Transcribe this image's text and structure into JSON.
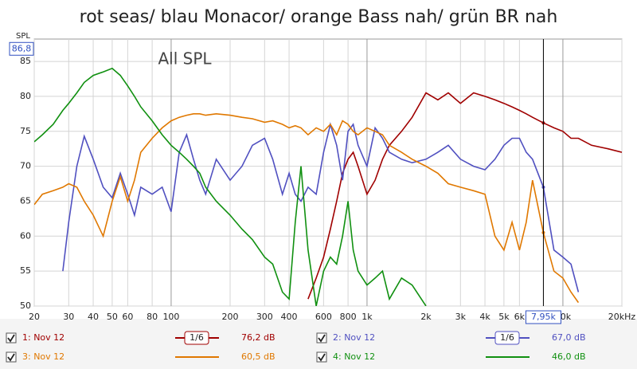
{
  "chart_data": {
    "type": "line",
    "title": "rot seas/ blau Monacor/ orange Bass nah/ grün BR nah",
    "annotation": "All SPL",
    "y_label": "SPL",
    "log_x": true,
    "grid": true,
    "xlim": [
      20,
      20000
    ],
    "ylim": [
      50,
      88.2
    ],
    "xticks": [
      20,
      30,
      40,
      50,
      60,
      80,
      100,
      200,
      300,
      400,
      600,
      800,
      {
        "value": 1000,
        "label": "1k"
      },
      {
        "value": 2000,
        "label": "2k"
      },
      {
        "value": 3000,
        "label": "3k"
      },
      {
        "value": 4000,
        "label": "4k"
      },
      {
        "value": 5000,
        "label": "5k"
      },
      {
        "value": 6000,
        "label": "6k"
      },
      {
        "value": 10000,
        "label": "10k"
      },
      {
        "value": 20000,
        "label": "20kHz"
      }
    ],
    "yticks": [
      50,
      55,
      60,
      65,
      70,
      75,
      80,
      85
    ],
    "cursor": {
      "x": {
        "value": 7950,
        "label": "7,95k"
      },
      "y": {
        "value": 86.8,
        "label": "86,8"
      }
    },
    "x": [
      20,
      22,
      25,
      28,
      30,
      33,
      36,
      40,
      45,
      50,
      55,
      60,
      65,
      70,
      80,
      90,
      100,
      110,
      120,
      130,
      140,
      150,
      170,
      200,
      230,
      260,
      300,
      330,
      370,
      400,
      430,
      460,
      500,
      550,
      600,
      650,
      700,
      750,
      800,
      850,
      900,
      1000,
      1100,
      1200,
      1300,
      1500,
      1700,
      2000,
      2300,
      2600,
      3000,
      3500,
      4000,
      4500,
      5000,
      5500,
      6000,
      6500,
      7000,
      7950,
      9000,
      10000,
      11000,
      12000,
      14000,
      17000,
      20000
    ],
    "series": [
      {
        "name": "1: Nov 12",
        "color": "#a00000",
        "smoothing": "1/6",
        "cursor_value": 76.2,
        "cursor_label": "76,2 dB",
        "values": [
          null,
          null,
          null,
          null,
          null,
          null,
          null,
          null,
          null,
          null,
          null,
          null,
          null,
          null,
          null,
          null,
          null,
          null,
          null,
          null,
          null,
          null,
          null,
          null,
          null,
          null,
          null,
          null,
          null,
          null,
          null,
          null,
          51,
          54,
          57,
          61,
          65,
          69,
          71,
          72,
          70,
          66,
          68,
          71,
          73,
          75,
          77,
          80.5,
          79.5,
          80.5,
          79,
          80.5,
          80,
          79.5,
          79,
          78.5,
          78,
          77.5,
          77,
          76.2,
          75.5,
          75,
          74,
          74,
          73,
          72.5,
          72
        ]
      },
      {
        "name": "2: Nov 12",
        "color": "#5050c0",
        "smoothing": "1/6",
        "cursor_value": 67.0,
        "cursor_label": "67,0 dB",
        "values": [
          null,
          null,
          null,
          55,
          62,
          70,
          74.3,
          71,
          67,
          65.5,
          69,
          66,
          63,
          67,
          66,
          67,
          63.5,
          72,
          74.5,
          71,
          68,
          66,
          71,
          68,
          70,
          73,
          74,
          71,
          66,
          69,
          66,
          65,
          67,
          66,
          72,
          76,
          73,
          68,
          75,
          76,
          73,
          70,
          75.5,
          74,
          72,
          71,
          70.5,
          71,
          72,
          73,
          71,
          70,
          69.5,
          71,
          73,
          74,
          74,
          72,
          71,
          67,
          58,
          57,
          56,
          52,
          null,
          null,
          null
        ]
      },
      {
        "name": "3: Nov 12",
        "color": "#e07800",
        "cursor_value": 60.5,
        "cursor_label": "60,5 dB",
        "values": [
          64.5,
          66,
          66.5,
          67,
          67.5,
          67,
          65,
          63,
          60,
          65,
          68.5,
          65,
          68,
          72,
          74,
          75.5,
          76.5,
          77,
          77.3,
          77.5,
          77.5,
          77.3,
          77.5,
          77.3,
          77,
          76.8,
          76.3,
          76.5,
          76,
          75.5,
          75.8,
          75.5,
          74.5,
          75.5,
          75,
          76,
          74.5,
          76.5,
          76,
          75,
          74.5,
          75.5,
          75,
          74.5,
          73,
          72,
          71,
          70,
          69,
          67.5,
          67,
          66.5,
          66,
          60,
          58,
          62,
          58,
          62,
          68,
          60.5,
          55,
          54,
          52,
          50.5,
          null,
          null,
          null
        ]
      },
      {
        "name": "4: Nov 12",
        "color": "#109010",
        "cursor_value": 46.0,
        "cursor_label": "46,0 dB",
        "values": [
          73.5,
          74.5,
          76,
          78,
          79,
          80.5,
          82,
          83,
          83.5,
          84,
          83,
          81.5,
          80,
          78.5,
          76.5,
          74.5,
          73,
          72,
          71,
          70,
          69,
          67,
          65,
          63,
          61,
          59.5,
          57,
          56,
          52,
          51,
          62,
          70,
          58,
          50,
          55,
          57,
          56,
          60,
          65,
          58,
          55,
          53,
          54,
          55,
          51,
          54,
          53,
          50,
          null,
          null,
          null,
          null,
          null,
          null,
          null,
          null,
          null,
          null,
          null,
          null,
          null,
          null,
          null,
          null,
          null,
          null,
          null
        ]
      }
    ]
  }
}
